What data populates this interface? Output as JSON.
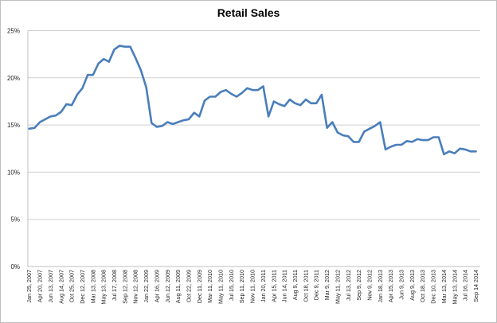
{
  "chart_data": {
    "type": "line",
    "title": "Retail Sales",
    "xlabel": "",
    "ylabel": "",
    "ylim": [
      0,
      25
    ],
    "grid": true,
    "legend": "none",
    "y_ticks": [
      "0%",
      "5%",
      "10%",
      "15%",
      "20%",
      "25%"
    ],
    "y_tick_values": [
      0,
      5,
      10,
      15,
      20,
      25
    ],
    "x_tick_labels": [
      "Jan 25, 2007",
      "Apr 20, 2007",
      "Jun 13, 2007",
      "Aug 14, 2007",
      "Oct 25, 2007",
      "Dec 12, 2007",
      "Mar 13, 2008",
      "May 13, 2008",
      "Jul 17, 2008",
      "Sep 12, 2008",
      "Nov 12, 2008",
      "Jan 22, 2009",
      "Apr 16, 2009",
      "Jun 12, 2009",
      "Aug 11, 2009",
      "Oct 22, 2009",
      "Dec 11, 2009",
      "Mar 11, 2010",
      "May 11, 2010",
      "Jul 15, 2010",
      "Sep 11, 2010",
      "Nov 11, 2010",
      "Jan 20, 2011",
      "Apr 15, 2011",
      "Jun 14, 2011",
      "Aug 9, 2011",
      "Oct 18, 2011",
      "Dec 9, 2011",
      "Mar 9, 2012",
      "May 11, 2012",
      "Jul 13, 2012",
      "Sep 9, 2012",
      "Nov 9, 2012",
      "Jan 18, 2013",
      "Apr 15, 2013",
      "Jun 9, 2013",
      "Aug 9, 2013",
      "Oct 18, 2013",
      "Dec 10, 2013",
      "Mar 13, 2014",
      "May 13, 2014",
      "Jul 16, 2014",
      "Sep 14 2014"
    ],
    "x_tick_every": 2,
    "series": [
      {
        "name": "Retail Sales",
        "color": "#4a7ebb",
        "unit": "%",
        "values": [
          14.6,
          14.7,
          15.3,
          15.6,
          15.9,
          16.0,
          16.4,
          17.2,
          17.1,
          18.2,
          18.9,
          20.3,
          20.3,
          21.5,
          22.0,
          21.7,
          23.0,
          23.4,
          23.3,
          23.3,
          22.1,
          20.8,
          19.0,
          15.2,
          14.8,
          14.9,
          15.3,
          15.1,
          15.3,
          15.5,
          15.6,
          16.3,
          15.9,
          17.6,
          18.0,
          18.0,
          18.5,
          18.7,
          18.3,
          18.0,
          18.4,
          18.9,
          18.7,
          18.7,
          19.1,
          15.9,
          17.5,
          17.2,
          17.0,
          17.7,
          17.3,
          17.1,
          17.7,
          17.3,
          17.3,
          18.2,
          14.7,
          15.3,
          14.2,
          13.9,
          13.8,
          13.2,
          13.2,
          14.3,
          14.6,
          14.9,
          15.3,
          12.4,
          12.7,
          12.9,
          12.9,
          13.3,
          13.2,
          13.5,
          13.4,
          13.4,
          13.7,
          13.7,
          11.9,
          12.2,
          12.0,
          12.5,
          12.4,
          12.2,
          12.2
        ]
      }
    ]
  },
  "colors": {
    "line": "#4a7ebb",
    "grid": "#d0d0d0",
    "axis": "#bfbfbf",
    "border": "#bfbfbf"
  }
}
